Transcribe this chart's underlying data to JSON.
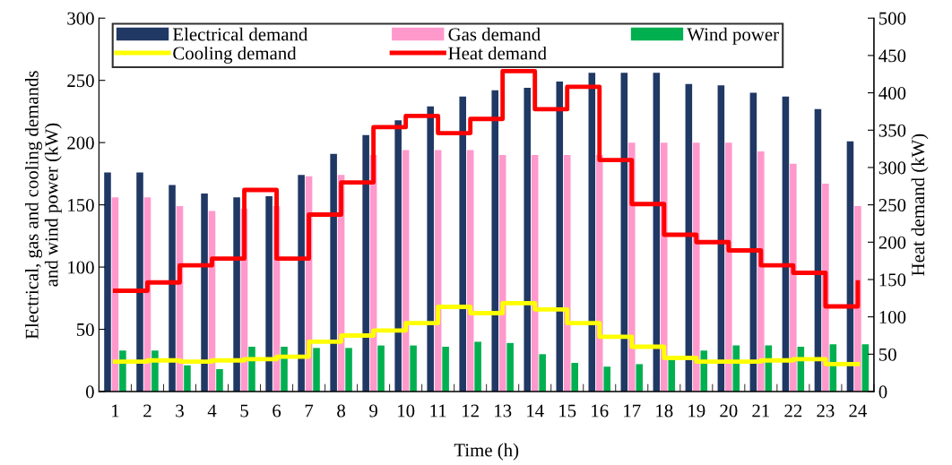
{
  "chart_data": {
    "type": "bar",
    "xlabel": "Time (h)",
    "ylabel": "Electrical, gas and cooling demands\nand wind power (kW)",
    "y2label": "Heat demand (kW)",
    "categories": [
      "1",
      "2",
      "3",
      "4",
      "5",
      "6",
      "7",
      "8",
      "9",
      "10",
      "11",
      "12",
      "13",
      "14",
      "15",
      "16",
      "17",
      "18",
      "19",
      "20",
      "21",
      "22",
      "23",
      "24"
    ],
    "series": [
      {
        "name": "Electrical demand",
        "color": "#203864",
        "values": [
          176,
          176,
          166,
          159,
          156,
          157,
          174,
          191,
          206,
          218,
          229,
          237,
          242,
          244,
          249,
          256,
          256,
          256,
          247,
          246,
          240,
          237,
          227,
          201
        ]
      },
      {
        "name": "Gas demand",
        "color": "#ff99cc",
        "values": [
          156,
          156,
          149,
          145,
          147,
          149,
          173,
          174,
          190,
          194,
          194,
          194,
          190,
          190,
          190,
          190,
          200,
          200,
          200,
          200,
          193,
          183,
          167,
          149
        ]
      },
      {
        "name": "Wind power",
        "color": "#00b050",
        "values": [
          33,
          33,
          21,
          18,
          36,
          36,
          35,
          35,
          37,
          37,
          36,
          40,
          39,
          30,
          23,
          20,
          22,
          26,
          33,
          37,
          37,
          36,
          38,
          38
        ]
      },
      {
        "name": "Cooling demand",
        "type": "step",
        "color": "#ffff00",
        "values": [
          24,
          25,
          24,
          25,
          26,
          28,
          40,
          45,
          49,
          55,
          68,
          63,
          71,
          66,
          55,
          44,
          36,
          27,
          24,
          24,
          25,
          26,
          22,
          22
        ]
      },
      {
        "name": "Heat demand",
        "type": "step",
        "axis": "y2",
        "color": "#ff0000",
        "values": [
          135,
          146,
          169,
          178,
          270,
          178,
          237,
          280,
          354,
          369,
          346,
          365,
          429,
          378,
          408,
          310,
          251,
          210,
          200,
          189,
          169,
          159,
          114,
          146
        ]
      }
    ],
    "ylim": [
      0,
      300
    ],
    "yticks": [
      0,
      50,
      100,
      150,
      200,
      250,
      300
    ],
    "y2lim": [
      0,
      500
    ],
    "y2ticks": [
      0,
      50,
      100,
      150,
      200,
      250,
      300,
      350,
      400,
      450,
      500
    ],
    "legend": "top",
    "grid": false
  }
}
